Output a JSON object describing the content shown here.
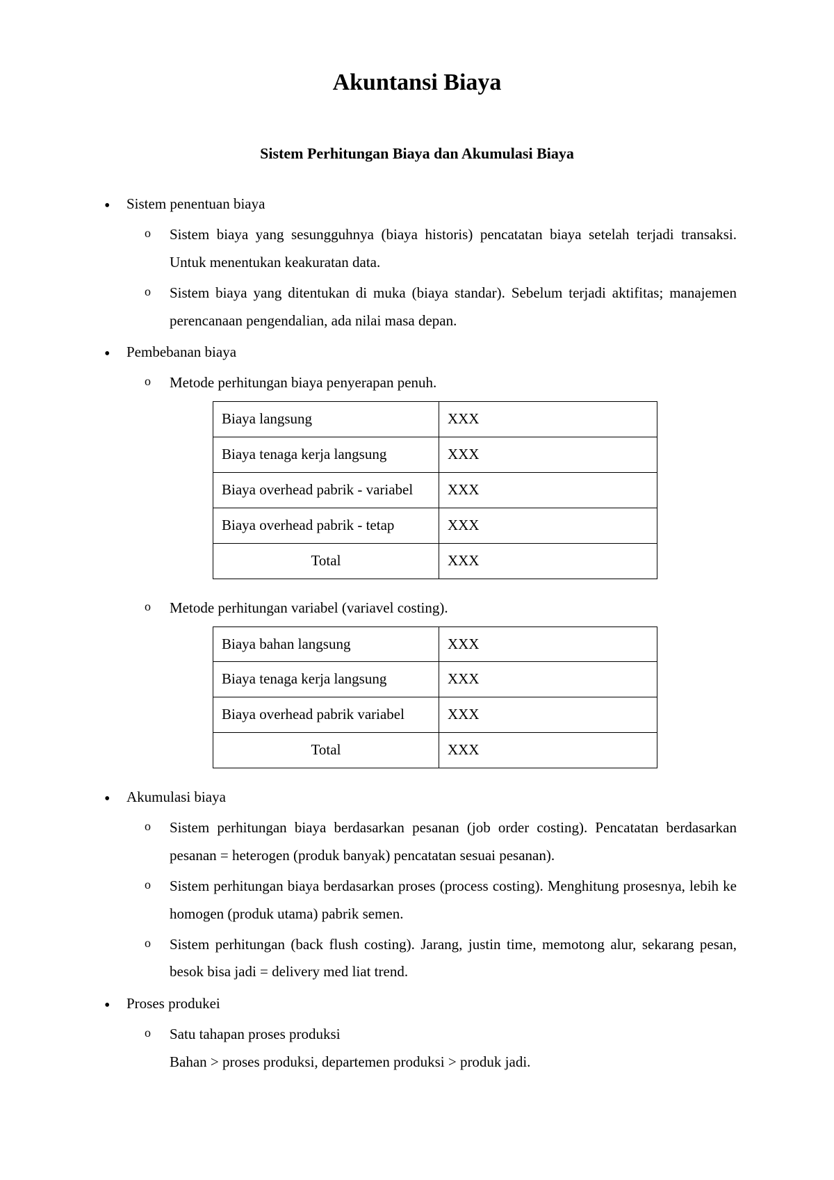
{
  "title": "Akuntansi Biaya",
  "subtitle": "Sistem Perhitungan Biaya dan Akumulasi Biaya",
  "sections": {
    "sistem_penentuan": {
      "heading": "Sistem penentuan biaya",
      "items": [
        "Sistem biaya yang sesungguhnya (biaya historis) pencatatan biaya setelah terjadi transaksi. Untuk menentukan keakuratan data.",
        "Sistem biaya yang ditentukan di muka (biaya standar). Sebelum terjadi aktifitas; manajemen perencanaan pengendalian, ada nilai masa depan."
      ]
    },
    "pembebanan": {
      "heading": "Pembebanan biaya",
      "method1": {
        "label": "Metode perhitungan biaya penyerapan penuh.",
        "table": {
          "rows": [
            {
              "label": "Biaya langsung",
              "value": "XXX"
            },
            {
              "label": "Biaya tenaga kerja langsung",
              "value": "XXX"
            },
            {
              "label": "Biaya overhead pabrik - variabel",
              "value": "XXX"
            },
            {
              "label": "Biaya overhead pabrik - tetap",
              "value": "XXX"
            }
          ],
          "total": {
            "label": "Total",
            "value": "XXX"
          }
        }
      },
      "method2": {
        "label": " Metode perhitungan variabel (variavel costing).",
        "table": {
          "rows": [
            {
              "label": "Biaya bahan langsung",
              "value": "XXX"
            },
            {
              "label": "Biaya tenaga kerja langsung",
              "value": "XXX"
            },
            {
              "label": "Biaya overhead pabrik variabel",
              "value": "XXX"
            }
          ],
          "total": {
            "label": "Total",
            "value": "XXX"
          }
        }
      }
    },
    "akumulasi": {
      "heading": "Akumulasi biaya",
      "items": [
        "Sistem perhitungan biaya berdasarkan pesanan (job order costing). Pencatatan berdasarkan pesanan = heterogen (produk banyak) pencatatan sesuai pesanan).",
        "Sistem perhitungan biaya berdasarkan proses (process costing). Menghitung prosesnya, lebih ke homogen (produk utama) pabrik semen.",
        "Sistem perhitungan (back flush costing). Jarang, justin time, memotong alur, sekarang pesan, besok bisa jadi = delivery med liat trend."
      ]
    },
    "proses_produksi": {
      "heading": "Proses produkei",
      "item_heading": "Satu tahapan proses produksi",
      "item_detail": "Bahan > proses produksi, departemen produksi > produk jadi."
    }
  }
}
